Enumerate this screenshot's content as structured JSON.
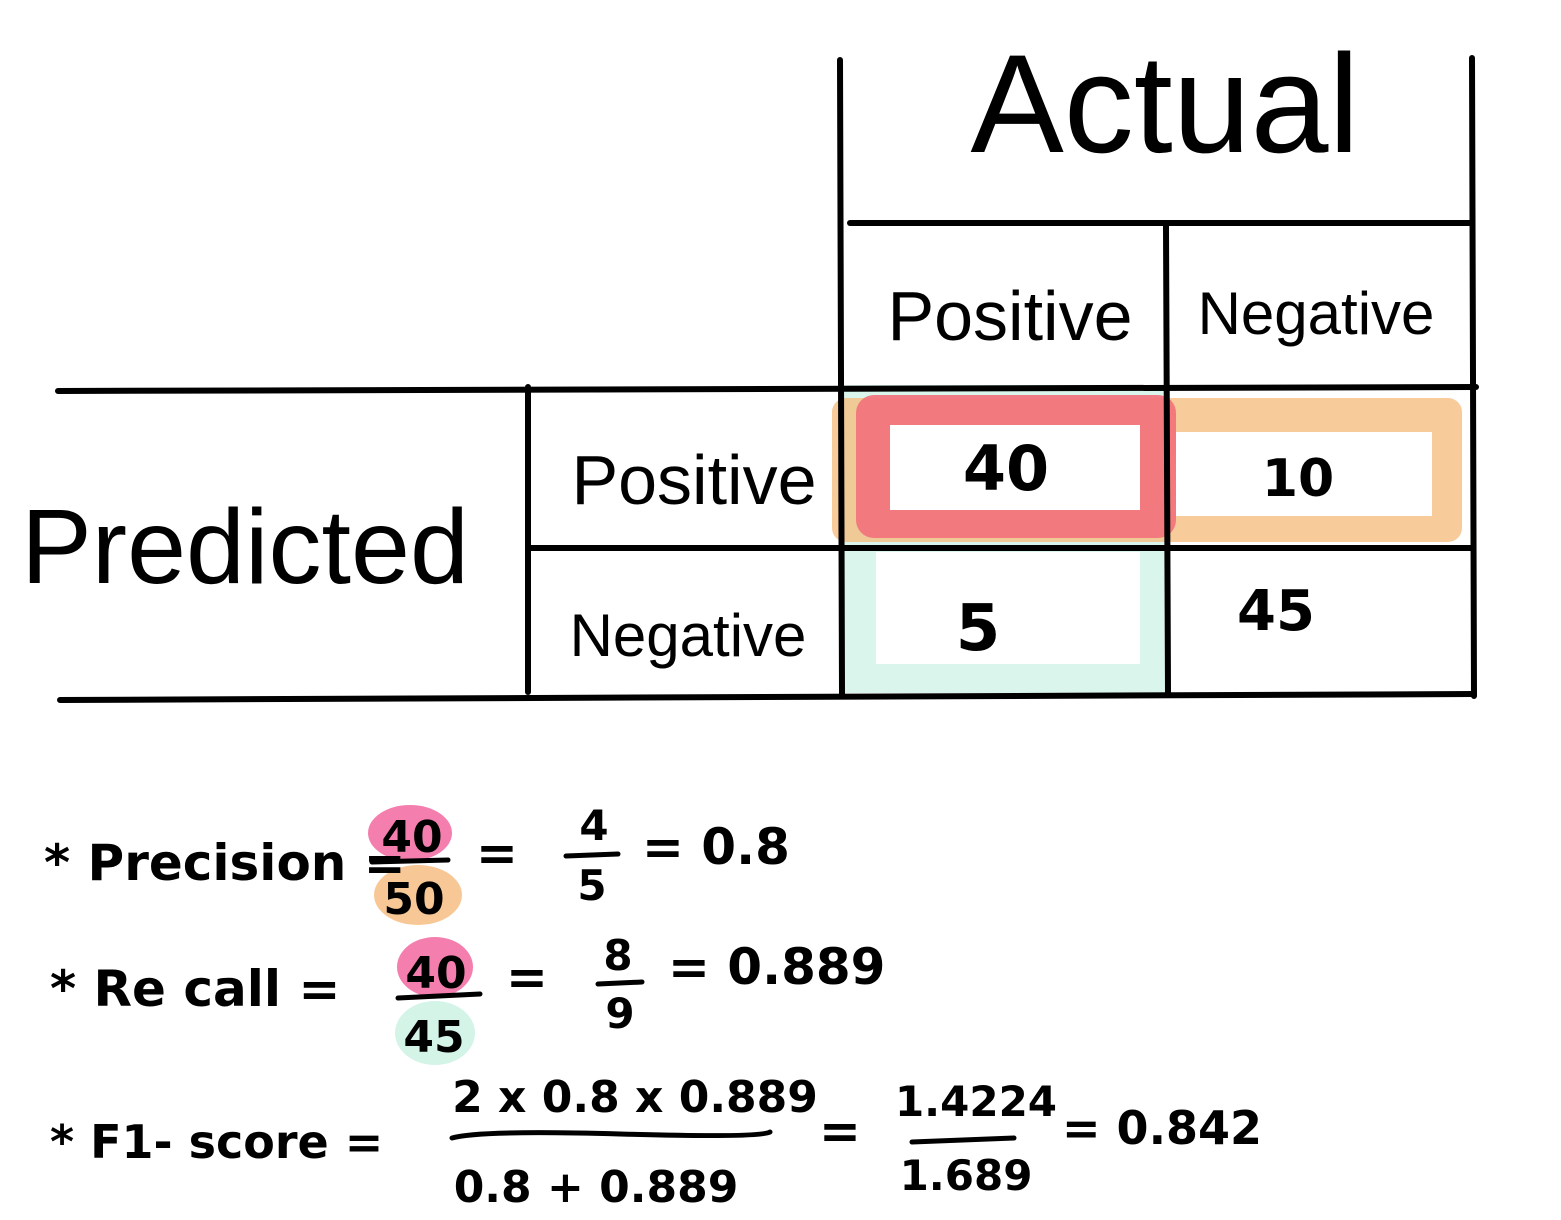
{
  "matrix": {
    "actual_header": "Actual",
    "predicted_header": "Predicted",
    "actual_positive": "Positive",
    "actual_negative": "Negative",
    "predicted_positive": "Positive",
    "predicted_negative": "Negative",
    "cells": {
      "tp": "40",
      "fp": "10",
      "fn": "5",
      "tn": "45"
    }
  },
  "highlight_colors": {
    "true_positive": "#f2707a",
    "predicted_positive_row": "#f5b97a",
    "actual_positive_column": "#cdf1e4",
    "pink_marker": "#f47fae",
    "orange_marker": "#f7c896",
    "mint_marker": "#d4f4e8"
  },
  "formulas": {
    "precision": {
      "label": "* Precision =",
      "num": "40",
      "den": "50",
      "eq1": "=",
      "simp_num": "4",
      "simp_den": "5",
      "result": "= 0.8"
    },
    "recall": {
      "label": "* Re call  =",
      "num": "40",
      "den": "45",
      "eq1": "=",
      "simp_num": "8",
      "simp_den": "9",
      "result": "= 0.889"
    },
    "f1": {
      "label": "* F1- score =",
      "num": "2 x 0.8 x 0.889",
      "den": "0.8 + 0.889",
      "eq1": "=",
      "simp_num": "1.4224",
      "simp_den": "1.689",
      "result": "= 0.842"
    }
  }
}
